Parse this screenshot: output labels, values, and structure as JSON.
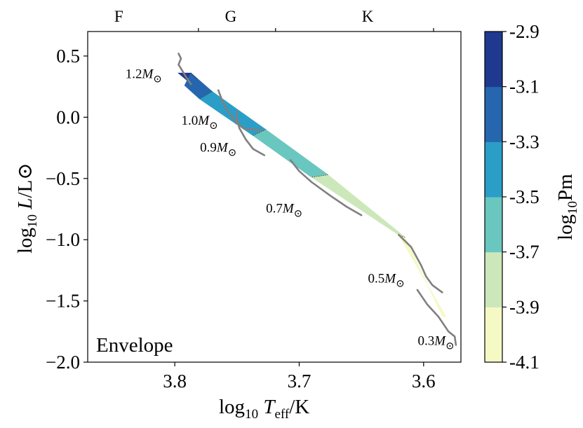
{
  "chart_data": {
    "type": "contour-map",
    "xlabel": "log10 Teff/K",
    "ylabel": "log10 L/L⊙",
    "xlim": [
      3.87,
      3.57
    ],
    "ylim": [
      -2.0,
      0.7
    ],
    "x_inverted": true,
    "xticks": [
      3.8,
      3.7,
      3.6
    ],
    "xtick_labels": [
      "3.8",
      "3.7",
      "3.6"
    ],
    "yticks": [
      -2.0,
      -1.5,
      -1.0,
      -0.5,
      0.0,
      0.5
    ],
    "ytick_labels": [
      "−2.0",
      "−1.5",
      "−1.0",
      "−0.5",
      "0.0",
      "0.5"
    ],
    "top_axis": {
      "labels": [
        "F",
        "G",
        "K"
      ],
      "label_positions": [
        3.845,
        3.755,
        3.645
      ],
      "boundaries": [
        3.781,
        3.719,
        3.592
      ]
    },
    "panel_label": "Envelope",
    "colorbar": {
      "label": "log10Pm",
      "levels": [
        -4.1,
        -3.9,
        -3.7,
        -3.5,
        -3.3,
        -3.1,
        -2.9
      ],
      "level_labels": [
        "-4.1",
        "-3.9",
        "-3.7",
        "-3.5",
        "-3.3",
        "-3.1",
        "-2.9"
      ],
      "colors": [
        "#f5f9c4",
        "#cce8ba",
        "#6ac7bf",
        "#2b9ec7",
        "#2566af",
        "#1f3990"
      ]
    },
    "band": {
      "upper_edge": [
        [
          3.797,
          0.35
        ],
        [
          3.78,
          0.25
        ],
        [
          3.757,
          0.1
        ],
        [
          3.73,
          -0.05
        ],
        [
          3.7,
          -0.26
        ],
        [
          3.677,
          -0.45
        ],
        [
          3.66,
          -0.53
        ],
        [
          3.64,
          -0.63
        ],
        [
          3.615,
          -0.85
        ],
        [
          3.6,
          -1.15
        ],
        [
          3.592,
          -1.42
        ],
        [
          3.585,
          -1.62
        ]
      ],
      "lower_edge": [
        [
          3.78,
          0.15
        ],
        [
          3.76,
          0.02
        ],
        [
          3.737,
          -0.15
        ],
        [
          3.71,
          -0.33
        ],
        [
          3.69,
          -0.49
        ],
        [
          3.666,
          -0.63
        ],
        [
          3.645,
          -0.77
        ],
        [
          3.62,
          -0.96
        ],
        [
          3.6,
          -1.13
        ],
        [
          3.59,
          -1.33
        ],
        [
          3.582,
          -1.63
        ]
      ],
      "regions": [
        {
          "level": -3.0,
          "hull": [
            [
              3.797,
              0.36
            ],
            [
              3.787,
              0.36
            ],
            [
              3.782,
              0.31
            ],
            [
              3.79,
              0.3
            ]
          ]
        },
        {
          "level": -3.2,
          "hull": [
            [
              3.787,
              0.36
            ],
            [
              3.77,
              0.21
            ],
            [
              3.78,
              0.15
            ],
            [
              3.792,
              0.26
            ]
          ]
        },
        {
          "level": -3.4,
          "hull": [
            [
              3.77,
              0.21
            ],
            [
              3.727,
              -0.1
            ],
            [
              3.737,
              -0.15
            ],
            [
              3.78,
              0.15
            ]
          ]
        },
        {
          "level": -3.6,
          "hull": [
            [
              3.727,
              -0.1
            ],
            [
              3.677,
              -0.47
            ],
            [
              3.69,
              -0.49
            ],
            [
              3.737,
              -0.15
            ]
          ]
        },
        {
          "level": -3.8,
          "hull": [
            [
              3.677,
              -0.47
            ],
            [
              3.615,
              -0.98
            ],
            [
              3.62,
              -0.96
            ],
            [
              3.69,
              -0.49
            ]
          ]
        },
        {
          "level": -4.0,
          "hull": [
            [
              3.615,
              -0.98
            ],
            [
              3.585,
              -1.62
            ],
            [
              3.582,
              -1.63
            ],
            [
              3.62,
              -0.96
            ]
          ]
        }
      ]
    },
    "tracks": [
      {
        "label": "1.2M⊙",
        "label_at": [
          3.825,
          0.32
        ],
        "points": [
          [
            3.797,
            0.52
          ],
          [
            3.795,
            0.48
          ],
          [
            3.797,
            0.43
          ],
          [
            3.794,
            0.38
          ],
          [
            3.791,
            0.33
          ],
          [
            3.787,
            0.27
          ]
        ]
      },
      {
        "label": "1.0M⊙",
        "label_at": [
          3.78,
          -0.06
        ],
        "points": [
          [
            3.765,
            0.22
          ],
          [
            3.762,
            0.14
          ],
          [
            3.758,
            0.06
          ],
          [
            3.752,
            -0.03
          ],
          [
            3.745,
            -0.09
          ],
          [
            3.73,
            -0.11
          ]
        ]
      },
      {
        "label": "0.9M⊙",
        "label_at": [
          3.765,
          -0.28
        ],
        "points": [
          [
            3.75,
            0.05
          ],
          [
            3.75,
            -0.02
          ],
          [
            3.748,
            -0.09
          ],
          [
            3.743,
            -0.18
          ],
          [
            3.737,
            -0.26
          ],
          [
            3.728,
            -0.31
          ]
        ]
      },
      {
        "label": "0.7M⊙",
        "label_at": [
          3.712,
          -0.78
        ],
        "points": [
          [
            3.707,
            -0.35
          ],
          [
            3.7,
            -0.44
          ],
          [
            3.69,
            -0.53
          ],
          [
            3.675,
            -0.64
          ],
          [
            3.662,
            -0.73
          ],
          [
            3.65,
            -0.8
          ]
        ]
      },
      {
        "label": "0.5M⊙",
        "label_at": [
          3.63,
          -1.35
        ],
        "points": [
          [
            3.62,
            -0.96
          ],
          [
            3.61,
            -1.06
          ],
          [
            3.602,
            -1.21
          ],
          [
            3.598,
            -1.3
          ],
          [
            3.593,
            -1.37
          ],
          [
            3.585,
            -1.43
          ]
        ]
      },
      {
        "label": "0.3M⊙",
        "label_at": [
          3.59,
          -1.86
        ],
        "points": [
          [
            3.605,
            -1.41
          ],
          [
            3.597,
            -1.53
          ],
          [
            3.588,
            -1.63
          ],
          [
            3.58,
            -1.75
          ],
          [
            3.575,
            -1.79
          ],
          [
            3.574,
            -1.86
          ]
        ]
      }
    ]
  }
}
